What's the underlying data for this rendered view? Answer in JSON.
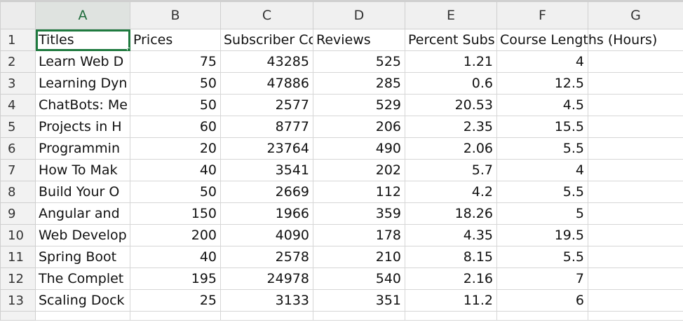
{
  "columns": [
    "A",
    "B",
    "C",
    "D",
    "E",
    "F",
    "G"
  ],
  "selected_cell": "A1",
  "rows": [
    {
      "num": "1",
      "a": "Titles",
      "b": "Prices",
      "c": "Subscriber Cc",
      "d": "Reviews",
      "e": "Percent Subs",
      "f": "Course Lengths (Hours)",
      "g": ""
    },
    {
      "num": "2",
      "a": "Learn Web D",
      "b": "75",
      "c": "43285",
      "d": "525",
      "e": "1.21",
      "f": "4",
      "g": ""
    },
    {
      "num": "3",
      "a": "Learning Dyn",
      "b": "50",
      "c": "47886",
      "d": "285",
      "e": "0.6",
      "f": "12.5",
      "g": ""
    },
    {
      "num": "4",
      "a": "ChatBots: Me",
      "b": "50",
      "c": "2577",
      "d": "529",
      "e": "20.53",
      "f": "4.5",
      "g": ""
    },
    {
      "num": "5",
      "a": "Projects in H",
      "b": "60",
      "c": "8777",
      "d": "206",
      "e": "2.35",
      "f": "15.5",
      "g": ""
    },
    {
      "num": "6",
      "a": "Programmin",
      "b": "20",
      "c": "23764",
      "d": "490",
      "e": "2.06",
      "f": "5.5",
      "g": ""
    },
    {
      "num": "7",
      "a": "How To Mak",
      "b": "40",
      "c": "3541",
      "d": "202",
      "e": "5.7",
      "f": "4",
      "g": ""
    },
    {
      "num": "8",
      "a": "Build Your O",
      "b": "50",
      "c": "2669",
      "d": "112",
      "e": "4.2",
      "f": "5.5",
      "g": ""
    },
    {
      "num": "9",
      "a": "Angular and",
      "b": "150",
      "c": "1966",
      "d": "359",
      "e": "18.26",
      "f": "5",
      "g": ""
    },
    {
      "num": "10",
      "a": "Web Develop",
      "b": "200",
      "c": "4090",
      "d": "178",
      "e": "4.35",
      "f": "19.5",
      "g": ""
    },
    {
      "num": "11",
      "a": "Spring Boot",
      "b": "40",
      "c": "2578",
      "d": "210",
      "e": "8.15",
      "f": "5.5",
      "g": ""
    },
    {
      "num": "12",
      "a": "The Complet",
      "b": "195",
      "c": "24978",
      "d": "540",
      "e": "2.16",
      "f": "7",
      "g": ""
    },
    {
      "num": "13",
      "a": "Scaling Dock",
      "b": "25",
      "c": "3133",
      "d": "351",
      "e": "11.2",
      "f": "6",
      "g": ""
    }
  ],
  "colors": {
    "selection": "#1f7a3f",
    "header_bg": "#f0f0f0",
    "gridline": "#d6d6d6"
  }
}
